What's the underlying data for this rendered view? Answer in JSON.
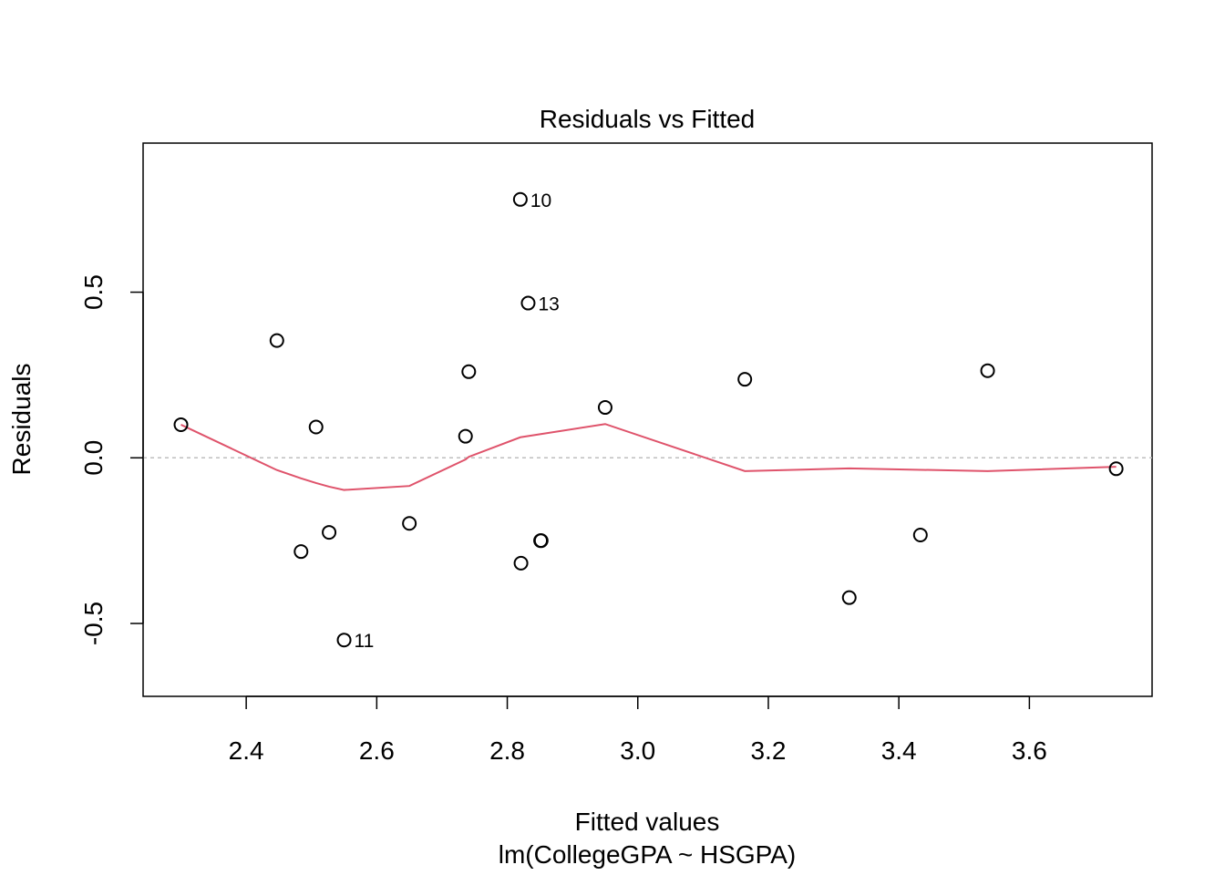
{
  "chart_data": {
    "type": "scatter",
    "title": "Residuals vs Fitted",
    "xlabel": "Fitted values",
    "subtitle": "lm(CollegeGPA ~ HSGPA)",
    "ylabel": "Residuals",
    "xlim": [
      2.242,
      3.788
    ],
    "ylim": [
      -0.72,
      0.95
    ],
    "xticks": [
      2.4,
      2.6,
      2.8,
      3.0,
      3.2,
      3.4,
      3.6
    ],
    "xtick_labels": [
      "2.4",
      "2.6",
      "2.8",
      "3.0",
      "3.2",
      "3.4",
      "3.6"
    ],
    "yticks": [
      -0.5,
      0.0,
      0.5
    ],
    "ytick_labels": [
      "-0.5",
      "0.0",
      "0.5"
    ],
    "reference_line_y": 0.0,
    "points": [
      {
        "x": 2.3,
        "y": 0.1
      },
      {
        "x": 2.447,
        "y": 0.354
      },
      {
        "x": 2.484,
        "y": -0.283
      },
      {
        "x": 2.507,
        "y": 0.093
      },
      {
        "x": 2.527,
        "y": -0.225
      },
      {
        "x": 2.55,
        "y": -0.55,
        "label": "11"
      },
      {
        "x": 2.65,
        "y": -0.198
      },
      {
        "x": 2.736,
        "y": 0.065
      },
      {
        "x": 2.741,
        "y": 0.26
      },
      {
        "x": 2.82,
        "y": 0.78,
        "label": "10"
      },
      {
        "x": 2.821,
        "y": -0.318
      },
      {
        "x": 2.832,
        "y": 0.467,
        "label": "13"
      },
      {
        "x": 2.851,
        "y": -0.25
      },
      {
        "x": 2.852,
        "y": -0.25
      },
      {
        "x": 2.95,
        "y": 0.152
      },
      {
        "x": 3.164,
        "y": 0.237
      },
      {
        "x": 3.324,
        "y": -0.422
      },
      {
        "x": 3.433,
        "y": -0.233
      },
      {
        "x": 3.536,
        "y": 0.263
      },
      {
        "x": 3.733,
        "y": -0.033
      }
    ],
    "smooth_line": {
      "color": "#DF536B",
      "x": [
        2.3,
        2.447,
        2.484,
        2.507,
        2.527,
        2.55,
        2.65,
        2.736,
        2.741,
        2.82,
        2.95,
        3.164,
        3.324,
        3.536,
        3.733
      ],
      "y": [
        0.1,
        -0.037,
        -0.062,
        -0.076,
        -0.087,
        -0.097,
        -0.085,
        -0.005,
        0.003,
        0.062,
        0.102,
        -0.04,
        -0.032,
        -0.04,
        -0.027
      ]
    },
    "colors": {
      "points": "#000000",
      "reference_line": "#BEBEBE"
    }
  }
}
